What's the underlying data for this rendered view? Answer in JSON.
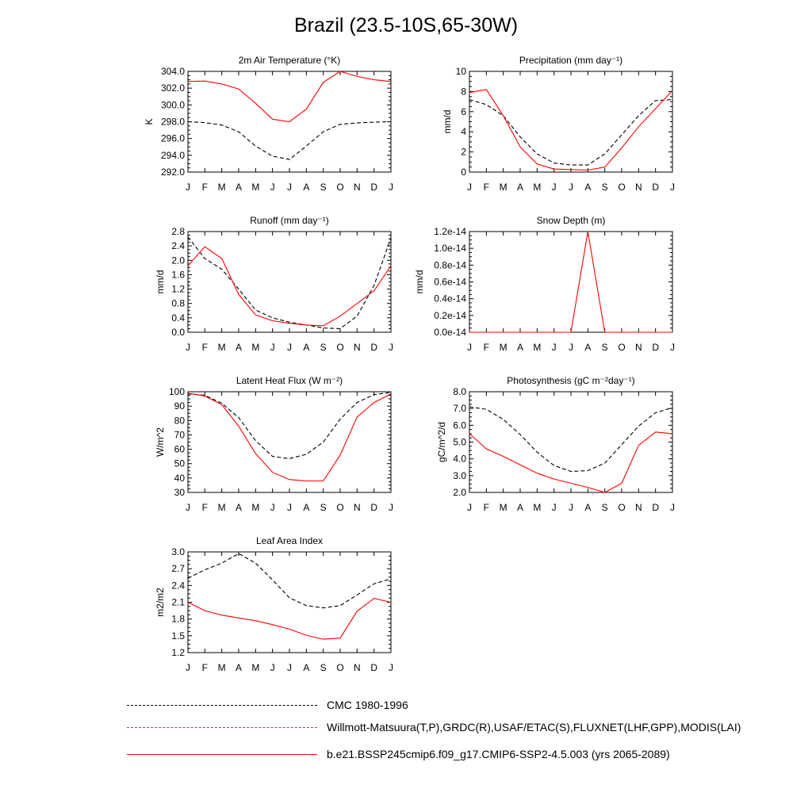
{
  "title": "Brazil (23.5-10S,65-30W)",
  "months": [
    "J",
    "F",
    "M",
    "A",
    "M",
    "J",
    "J",
    "A",
    "S",
    "O",
    "N",
    "D",
    "J"
  ],
  "legend": [
    {
      "name": "CMC 1980-1996",
      "style": "dashed",
      "color": "#000000"
    },
    {
      "name": "Willmott-Matsuura(T,P),GRDC(R),USAF/ETAC(S),FLUXNET(LHF,GPP),MODIS(LAI)",
      "style": "dashed-multicolor",
      "color": "#ff0000"
    },
    {
      "name": "b.e21.BSSP245cmip6.f09_g17.CMIP6-SSP2-4.5.003 (yrs 2065-2089)",
      "style": "solid",
      "color": "#ff0000"
    }
  ],
  "chart_data": [
    {
      "type": "line",
      "title": "2m Air Temperature (°K)",
      "ylabel": "K",
      "ylim": [
        292,
        304
      ],
      "yticks": [
        "292.0",
        "294.0",
        "296.0",
        "298.0",
        "300.0",
        "302.0",
        "304.0"
      ],
      "x": [
        "J",
        "F",
        "M",
        "A",
        "M",
        "J",
        "J",
        "A",
        "S",
        "O",
        "N",
        "D",
        "J"
      ],
      "series": [
        {
          "name": "CMC 1980-1996",
          "style": "dashed",
          "color": "#000000",
          "values": [
            298.0,
            297.9,
            297.6,
            296.8,
            295.1,
            293.9,
            293.5,
            295.1,
            296.8,
            297.7,
            297.85,
            297.95,
            298.0
          ]
        },
        {
          "name": "b.e21.BSSP245cmip6.f09_g17.CMIP6-SSP2-4.5.003 (yrs 2065-2089)",
          "style": "solid",
          "color": "#ff0000",
          "values": [
            302.8,
            302.85,
            302.5,
            301.9,
            300.2,
            298.3,
            298.0,
            299.5,
            302.7,
            304.0,
            303.4,
            303.0,
            302.8
          ]
        }
      ]
    },
    {
      "type": "line",
      "title": "Precipitation (mm day⁻¹)",
      "ylabel": "mm/d",
      "ylim": [
        0,
        10
      ],
      "yticks": [
        "0",
        "2",
        "4",
        "6",
        "8",
        "10"
      ],
      "x": [
        "J",
        "F",
        "M",
        "A",
        "M",
        "J",
        "J",
        "A",
        "S",
        "O",
        "N",
        "D",
        "J"
      ],
      "series": [
        {
          "name": "CMC 1980-1996",
          "style": "dashed",
          "color": "#000000",
          "values": [
            7.2,
            6.7,
            5.6,
            3.5,
            1.8,
            0.9,
            0.7,
            0.7,
            1.8,
            3.7,
            5.6,
            7.1,
            7.2
          ]
        },
        {
          "name": "b.e21.BSSP245cmip6.f09_g17.CMIP6-SSP2-4.5.003 (yrs 2065-2089)",
          "style": "solid",
          "color": "#ff0000",
          "values": [
            7.9,
            8.2,
            5.6,
            2.5,
            0.8,
            0.3,
            0.25,
            0.2,
            0.5,
            2.4,
            4.5,
            6.3,
            8.1
          ]
        }
      ]
    },
    {
      "type": "line",
      "title": "Runoff (mm day⁻¹)",
      "ylabel": "mm/d",
      "ylim": [
        0,
        2.8
      ],
      "yticks": [
        "0.0",
        "0.4",
        "0.8",
        "1.2",
        "1.6",
        "2.0",
        "2.4",
        "2.8"
      ],
      "x": [
        "J",
        "F",
        "M",
        "A",
        "M",
        "J",
        "J",
        "A",
        "S",
        "O",
        "N",
        "D",
        "J"
      ],
      "series": [
        {
          "name": "CMC 1980-1996",
          "style": "dashed",
          "color": "#000000",
          "values": [
            2.65,
            2.05,
            1.75,
            1.2,
            0.62,
            0.4,
            0.28,
            0.2,
            0.12,
            0.1,
            0.45,
            1.3,
            2.62
          ]
        },
        {
          "name": "b.e21.BSSP245cmip6.f09_g17.CMIP6-SSP2-4.5.003 (yrs 2065-2089)",
          "style": "solid",
          "color": "#ff0000",
          "values": [
            1.85,
            2.38,
            2.05,
            1.05,
            0.48,
            0.32,
            0.25,
            0.2,
            0.18,
            0.45,
            0.8,
            1.15,
            1.85
          ]
        }
      ]
    },
    {
      "type": "line",
      "title": "Snow Depth (m)",
      "ylabel": "mm/d",
      "ylim": [
        0,
        1.2
      ],
      "yunit": "e-14",
      "yticks": [
        "0.0e-14",
        "0.2e-14",
        "0.4e-14",
        "0.6e-14",
        "0.8e-14",
        "1.0e-14",
        "1.2e-14"
      ],
      "x": [
        "J",
        "F",
        "M",
        "A",
        "M",
        "J",
        "J",
        "A",
        "S",
        "O",
        "N",
        "D",
        "J"
      ],
      "series": [
        {
          "name": "CMC 1980-1996",
          "style": "dashed",
          "color": "#000000",
          "values": [
            0,
            0,
            0,
            0,
            0,
            0,
            0,
            0,
            0,
            0,
            0,
            0,
            0
          ]
        },
        {
          "name": "b.e21.BSSP245cmip6.f09_g17.CMIP6-SSP2-4.5.003 (yrs 2065-2089)",
          "style": "solid",
          "color": "#ff0000",
          "values": [
            0,
            0,
            0,
            0,
            0,
            0,
            0,
            1.2,
            0,
            0,
            0,
            0,
            0
          ]
        }
      ]
    },
    {
      "type": "line",
      "title": "Latent Heat Flux (W m⁻²)",
      "ylabel": "W/m^2",
      "ylim": [
        30,
        100
      ],
      "yticks": [
        "30",
        "40",
        "50",
        "60",
        "70",
        "80",
        "90",
        "100"
      ],
      "x": [
        "J",
        "F",
        "M",
        "A",
        "M",
        "J",
        "J",
        "A",
        "S",
        "O",
        "N",
        "D",
        "J"
      ],
      "series": [
        {
          "name": "CMC 1980-1996",
          "style": "dashed",
          "color": "#000000",
          "values": [
            98.5,
            97.5,
            92,
            82,
            66,
            55,
            53.5,
            56.5,
            65,
            81,
            92.5,
            98,
            99.5
          ]
        },
        {
          "name": "b.e21.BSSP245cmip6.f09_g17.CMIP6-SSP2-4.5.003 (yrs 2065-2089)",
          "style": "solid",
          "color": "#ff0000",
          "values": [
            99,
            97,
            91,
            76,
            57,
            44,
            39,
            38,
            38,
            56,
            82.5,
            92.5,
            98.5
          ]
        }
      ]
    },
    {
      "type": "line",
      "title": "Photosynthesis (gC m⁻²day⁻¹)",
      "ylabel": "gC/m^2/d",
      "ylim": [
        2,
        8
      ],
      "yticks": [
        "2.0",
        "3.0",
        "4.0",
        "5.0",
        "6.0",
        "7.0",
        "8.0"
      ],
      "x": [
        "J",
        "F",
        "M",
        "A",
        "M",
        "J",
        "J",
        "A",
        "S",
        "O",
        "N",
        "D",
        "J"
      ],
      "series": [
        {
          "name": "CMC 1980-1996",
          "style": "dashed",
          "color": "#000000",
          "values": [
            7.1,
            6.95,
            6.35,
            5.45,
            4.4,
            3.6,
            3.25,
            3.3,
            3.75,
            4.85,
            5.95,
            6.75,
            7.05
          ]
        },
        {
          "name": "b.e21.BSSP245cmip6.f09_g17.CMIP6-SSP2-4.5.003 (yrs 2065-2089)",
          "style": "solid",
          "color": "#ff0000",
          "values": [
            5.5,
            4.6,
            4.15,
            3.65,
            3.15,
            2.8,
            2.55,
            2.3,
            2.0,
            2.55,
            4.8,
            5.6,
            5.5
          ]
        }
      ]
    },
    {
      "type": "line",
      "title": "Leaf Area Index",
      "ylabel": "m2/m2",
      "ylim": [
        1.2,
        3.0
      ],
      "yticks": [
        "1.2",
        "1.5",
        "1.8",
        "2.1",
        "2.4",
        "2.7",
        "3.0"
      ],
      "x": [
        "J",
        "F",
        "M",
        "A",
        "M",
        "J",
        "J",
        "A",
        "S",
        "O",
        "N",
        "D",
        "J"
      ],
      "series": [
        {
          "name": "CMC 1980-1996",
          "style": "dashed",
          "color": "#000000",
          "values": [
            2.53,
            2.68,
            2.8,
            2.97,
            2.8,
            2.5,
            2.18,
            2.04,
            2.0,
            2.04,
            2.23,
            2.43,
            2.52
          ]
        },
        {
          "name": "b.e21.BSSP245cmip6.f09_g17.CMIP6-SSP2-4.5.003 (yrs 2065-2089)",
          "style": "solid",
          "color": "#ff0000",
          "values": [
            2.1,
            1.95,
            1.87,
            1.82,
            1.77,
            1.7,
            1.62,
            1.51,
            1.44,
            1.46,
            1.94,
            2.17,
            2.1
          ]
        }
      ]
    }
  ]
}
